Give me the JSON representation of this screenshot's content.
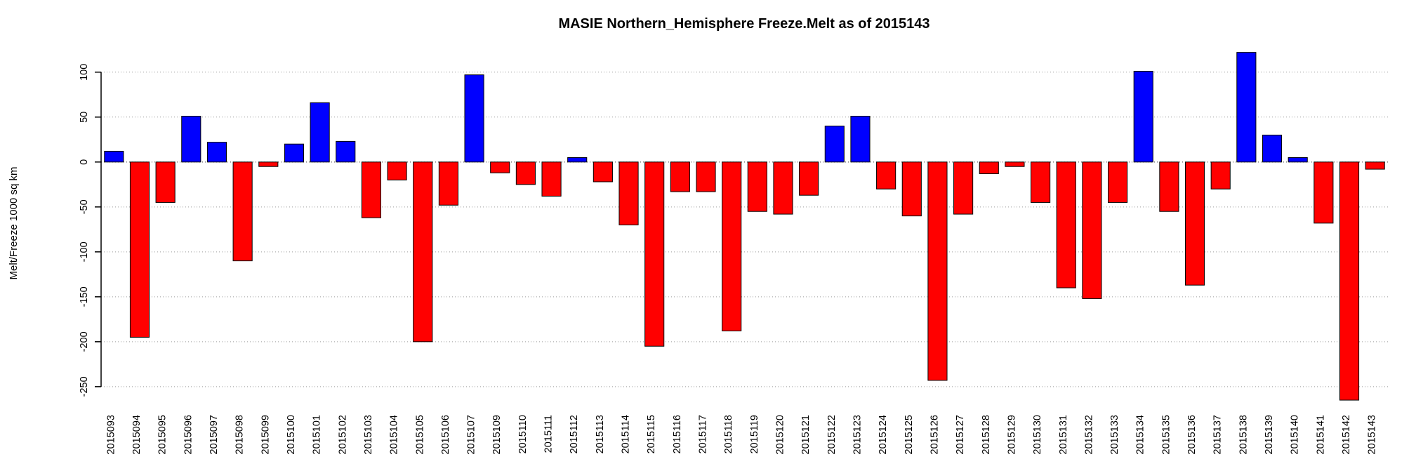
{
  "chart_data": {
    "type": "bar",
    "title": "MASIE Northern_Hemisphere Freeze.Melt as of 2015143",
    "xlabel": "",
    "ylabel": "Melt/Freeze 1000 sq km",
    "ylim": [
      -272,
      135
    ],
    "yticks": [
      100,
      50,
      0,
      -50,
      -100,
      -150,
      -200,
      -250
    ],
    "grid": "dotted-horizontal-at-ticks",
    "legend": "none",
    "colors": {
      "positive_freeze": "#0000ff",
      "negative_melt": "#ff0000",
      "bar_border": "#000000",
      "background": "#ffffff"
    },
    "categories": [
      "2015093",
      "2015094",
      "2015095",
      "2015096",
      "2015097",
      "2015098",
      "2015099",
      "2015100",
      "2015101",
      "2015102",
      "2015103",
      "2015104",
      "2015105",
      "2015106",
      "2015107",
      "2015109",
      "2015110",
      "2015111",
      "2015112",
      "2015113",
      "2015114",
      "2015115",
      "2015116",
      "2015117",
      "2015118",
      "2015119",
      "2015120",
      "2015121",
      "2015122",
      "2015123",
      "2015124",
      "2015125",
      "2015126",
      "2015127",
      "2015128",
      "2015129",
      "2015130",
      "2015131",
      "2015132",
      "2015133",
      "2015134",
      "2015135",
      "2015136",
      "2015137",
      "2015138",
      "2015139",
      "2015140",
      "2015141",
      "2015142",
      "2015143"
    ],
    "values": [
      12,
      -195,
      -45,
      51,
      22,
      -110,
      -5,
      20,
      66,
      23,
      -62,
      -20,
      -200,
      -48,
      97,
      -12,
      -25,
      -38,
      5,
      -22,
      -70,
      -205,
      -33,
      -33,
      -188,
      -55,
      -58,
      -37,
      40,
      51,
      -30,
      -60,
      -243,
      -58,
      -13,
      -5,
      -45,
      -140,
      -152,
      -45,
      101,
      -55,
      -137,
      -30,
      122,
      30,
      5,
      -68,
      -265,
      -8
    ]
  }
}
